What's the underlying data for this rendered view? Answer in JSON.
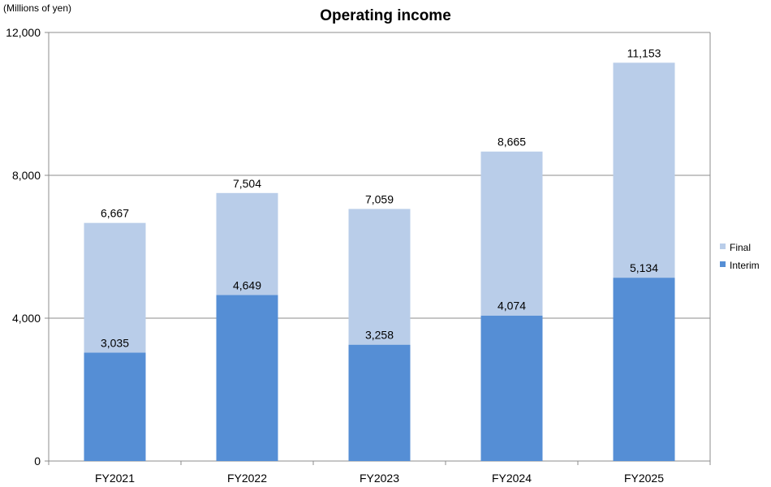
{
  "chart_data": {
    "type": "bar",
    "stacked": true,
    "title": "Operating income",
    "unit_label": "(Millions of yen)",
    "categories": [
      "FY2021",
      "FY2022",
      "FY2023",
      "FY2024",
      "FY2025"
    ],
    "series": [
      {
        "name": "Interim",
        "values": [
          3035,
          4649,
          3258,
          4074,
          5134
        ],
        "labels": [
          "3,035",
          "4,649",
          "3,258",
          "4,074",
          "5,134"
        ],
        "color": "#558ED5"
      },
      {
        "name": "Final",
        "values": [
          3632,
          2855,
          3801,
          4591,
          6019
        ],
        "color": "#B9CDE9"
      }
    ],
    "totals": [
      6667,
      7504,
      7059,
      8665,
      11153
    ],
    "total_labels": [
      "6,667",
      "7,504",
      "7,059",
      "8,665",
      "11,153"
    ],
    "ylim": [
      0,
      12000
    ],
    "yticks": [
      0,
      4000,
      8000,
      12000
    ],
    "ytick_labels": [
      "0",
      "4,000",
      "8,000",
      "12,000"
    ],
    "grid": true,
    "legend_position": "right",
    "legend_order": [
      "Final",
      "Interim"
    ]
  }
}
